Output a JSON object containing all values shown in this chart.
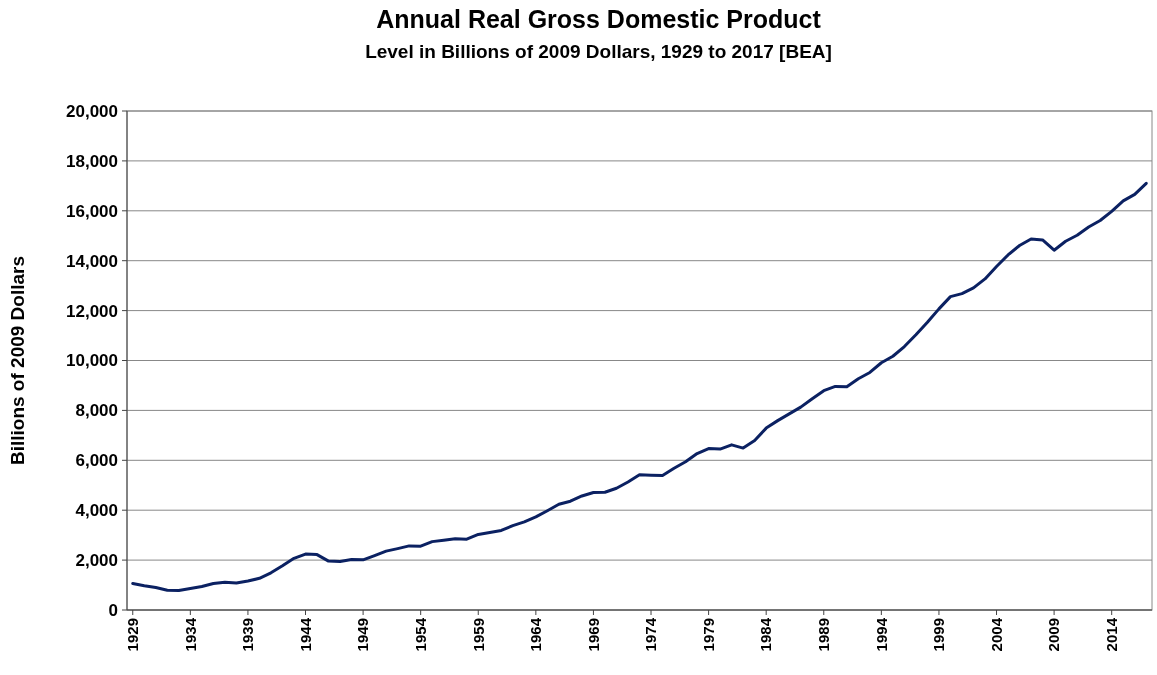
{
  "chart_data": {
    "type": "line",
    "title": "Annual Real Gross Domestic Product",
    "subtitle": "Level in Billions of 2009 Dollars, 1929 to 2017 [BEA]",
    "ylabel": "Billions of 2009 Dollars",
    "x": [
      1929,
      1930,
      1931,
      1932,
      1933,
      1934,
      1935,
      1936,
      1937,
      1938,
      1939,
      1940,
      1941,
      1942,
      1943,
      1944,
      1945,
      1946,
      1947,
      1948,
      1949,
      1950,
      1951,
      1952,
      1953,
      1954,
      1955,
      1956,
      1957,
      1958,
      1959,
      1960,
      1961,
      1962,
      1963,
      1964,
      1965,
      1966,
      1967,
      1968,
      1969,
      1970,
      1971,
      1972,
      1973,
      1974,
      1975,
      1976,
      1977,
      1978,
      1979,
      1980,
      1981,
      1982,
      1983,
      1984,
      1985,
      1986,
      1987,
      1988,
      1989,
      1990,
      1991,
      1992,
      1993,
      1994,
      1995,
      1996,
      1997,
      1998,
      1999,
      2000,
      2001,
      2002,
      2003,
      2004,
      2005,
      2006,
      2007,
      2008,
      2009,
      2010,
      2011,
      2012,
      2013,
      2014,
      2015,
      2016,
      2017
    ],
    "series": [
      {
        "color": "#0b2162",
        "values": [
          1060,
          970,
          900,
          790,
          780,
          860,
          940,
          1060,
          1110,
          1080,
          1160,
          1270,
          1490,
          1770,
          2070,
          2240,
          2220,
          1960,
          1940,
          2020,
          2010,
          2180,
          2360,
          2460,
          2570,
          2560,
          2740,
          2800,
          2860,
          2840,
          3030,
          3110,
          3190,
          3380,
          3530,
          3730,
          3980,
          4240,
          4360,
          4570,
          4710,
          4720,
          4880,
          5130,
          5420,
          5400,
          5390,
          5680,
          5940,
          6270,
          6470,
          6450,
          6620,
          6490,
          6790,
          7290,
          7590,
          7860,
          8130,
          8470,
          8790,
          8960,
          8950,
          9270,
          9520,
          9910,
          10170,
          10560,
          11030,
          11530,
          12070,
          12560,
          12680,
          12910,
          13270,
          13770,
          14230,
          14610,
          14870,
          14830,
          14420,
          14780,
          15020,
          15350,
          15610,
          15980,
          16400,
          16660,
          17100
        ]
      }
    ],
    "xlim": [
      1928.5,
      2017.5
    ],
    "xticks": [
      1929,
      1934,
      1939,
      1944,
      1949,
      1954,
      1959,
      1964,
      1969,
      1974,
      1979,
      1984,
      1989,
      1994,
      1999,
      2004,
      2009,
      2014
    ],
    "ylim": [
      0,
      20000
    ],
    "yticks": [
      {
        "value": 0,
        "label": "0"
      },
      {
        "value": 2000,
        "label": "2,000"
      },
      {
        "value": 4000,
        "label": "4,000"
      },
      {
        "value": 6000,
        "label": "6,000"
      },
      {
        "value": 8000,
        "label": "8,000"
      },
      {
        "value": 10000,
        "label": "10,000"
      },
      {
        "value": 12000,
        "label": "12,000"
      },
      {
        "value": 14000,
        "label": "14,000"
      },
      {
        "value": 16000,
        "label": "16,000"
      },
      {
        "value": 18000,
        "label": "18,000"
      },
      {
        "value": 20000,
        "label": "20,000"
      }
    ],
    "grid": "y",
    "marker": "none",
    "line_style": "solid"
  }
}
